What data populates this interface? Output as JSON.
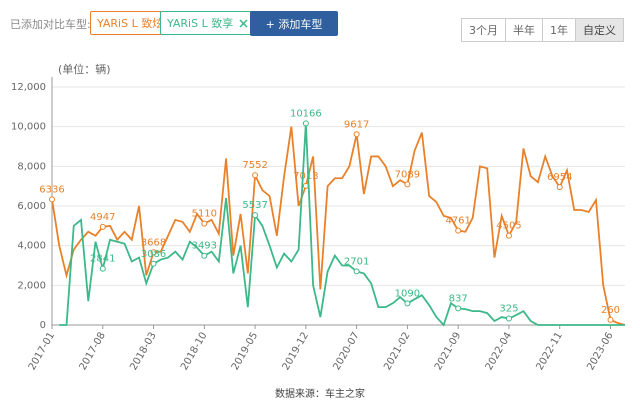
{
  "toolbar": {
    "label": "已添加对比车型:",
    "add_button": "+ 添加车型",
    "ranges": [
      "3个月",
      "半年",
      "1年",
      "自定义"
    ]
  },
  "chart_data": {
    "type": "line",
    "y_label": "(单位：辆)",
    "source": "数据来源：车主之家",
    "categories": [
      "2017-01",
      null,
      null,
      null,
      null,
      null,
      null,
      "2017-08",
      null,
      null,
      null,
      null,
      null,
      null,
      "2018-03",
      null,
      null,
      null,
      null,
      null,
      null,
      "2018-10",
      null,
      null,
      null,
      null,
      null,
      null,
      "2019-05",
      null,
      null,
      null,
      null,
      null,
      null,
      "2019-12",
      null,
      null,
      null,
      null,
      null,
      null,
      "2020-07",
      null,
      null,
      null,
      null,
      null,
      null,
      "2021-02",
      null,
      null,
      null,
      null,
      null,
      null,
      "2021-09",
      null,
      null,
      null,
      null,
      null,
      null,
      "2022-04",
      null,
      null,
      null,
      null,
      null,
      null,
      "2022-11",
      null,
      null,
      null,
      null,
      null,
      null,
      "2023-06",
      null,
      null
    ],
    "series": [
      {
        "name": "YARiS L 致炫",
        "color": "#e8812a",
        "values": [
          6336,
          4000,
          2500,
          3800,
          4300,
          4700,
          4500,
          4947,
          5000,
          4300,
          4700,
          4300,
          6000,
          2500,
          3668,
          3700,
          4500,
          5300,
          5200,
          4700,
          5600,
          5110,
          5300,
          4600,
          8400,
          3500,
          5600,
          2600,
          7552,
          6800,
          6500,
          4500,
          7500,
          10000,
          6000,
          7013,
          8500,
          1800,
          7000,
          7400,
          7400,
          8000,
          9617,
          6600,
          8500,
          8500,
          8000,
          7000,
          7300,
          7089,
          8800,
          9700,
          6500,
          6200,
          5500,
          5400,
          4761,
          4700,
          5400,
          8000,
          7900,
          3400,
          5500,
          4505,
          5200,
          8900,
          7500,
          7200,
          8500,
          7500,
          6954,
          7800,
          5800,
          5800,
          5700,
          6300,
          2000,
          260,
          100,
          0
        ]
      },
      {
        "name": "YARiS L 致享",
        "color": "#3cb88a",
        "values": [
          null,
          0,
          0,
          5000,
          5300,
          1200,
          4200,
          2841,
          4300,
          4200,
          4100,
          3200,
          3400,
          2100,
          3086,
          3300,
          3400,
          3700,
          3300,
          4200,
          3900,
          3493,
          3700,
          3200,
          6400,
          2600,
          4000,
          900,
          5537,
          5000,
          4000,
          2900,
          3600,
          3200,
          3800,
          10166,
          2000,
          400,
          2700,
          3500,
          3000,
          3000,
          2701,
          2600,
          2100,
          900,
          900,
          1100,
          1400,
          1090,
          1300,
          1500,
          1000,
          400,
          0,
          1100,
          837,
          800,
          700,
          700,
          600,
          200,
          400,
          325,
          500,
          700,
          200,
          0,
          0,
          0,
          0,
          0,
          0,
          0,
          0,
          0,
          0,
          0,
          0,
          0
        ]
      }
    ],
    "ylim": [
      0,
      12000
    ],
    "yticks": [
      0,
      {
        "value": 2000,
        "label": "2,000"
      },
      {
        "value": 4000,
        "label": "4,000"
      },
      {
        "value": 6000,
        "label": "6,000"
      },
      {
        "value": 8000,
        "label": "8,000"
      },
      {
        "value": 10000,
        "label": "10,000"
      },
      {
        "value": 12000,
        "label": "12,000"
      }
    ],
    "grid": true
  }
}
